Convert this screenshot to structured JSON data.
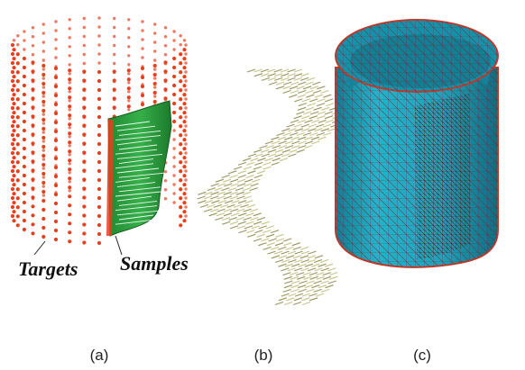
{
  "panels": [
    {
      "caption": "(a)",
      "labels": [
        "Targets",
        "Samples"
      ],
      "colors": {
        "targets": "#e8401c",
        "samples": "#2a9a3a",
        "sample_arrows": "#ffffff"
      }
    },
    {
      "caption": "(b)",
      "colors": {
        "vectors": "#c8c48a"
      }
    },
    {
      "caption": "(c)",
      "colors": {
        "mesh_fill": "#1fa6bf",
        "mesh_edges": "#c0392b"
      }
    }
  ]
}
